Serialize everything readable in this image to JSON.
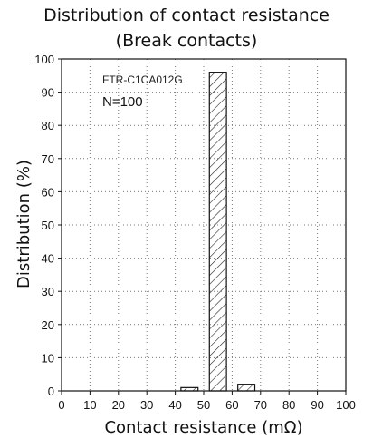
{
  "chart_data": {
    "type": "bar",
    "title": "Distribution of contact resistance",
    "subtitle": "(Break contacts)",
    "xlabel": "Contact resistance (mΩ)",
    "ylabel": "Distribution (%)",
    "xlim": [
      0,
      100
    ],
    "ylim": [
      0,
      100
    ],
    "xticks": [
      0,
      10,
      20,
      30,
      40,
      50,
      60,
      70,
      80,
      90,
      100
    ],
    "yticks": [
      0,
      10,
      20,
      30,
      40,
      50,
      60,
      70,
      80,
      90,
      100
    ],
    "grid": true,
    "bar_pattern": "hatched",
    "bars": [
      {
        "x0": 42,
        "x1": 48,
        "value": 1
      },
      {
        "x0": 52,
        "x1": 58,
        "value": 96
      },
      {
        "x0": 62,
        "x1": 68,
        "value": 2
      }
    ],
    "annotations": [
      "FTR-C1CA012G",
      "N=100"
    ]
  }
}
